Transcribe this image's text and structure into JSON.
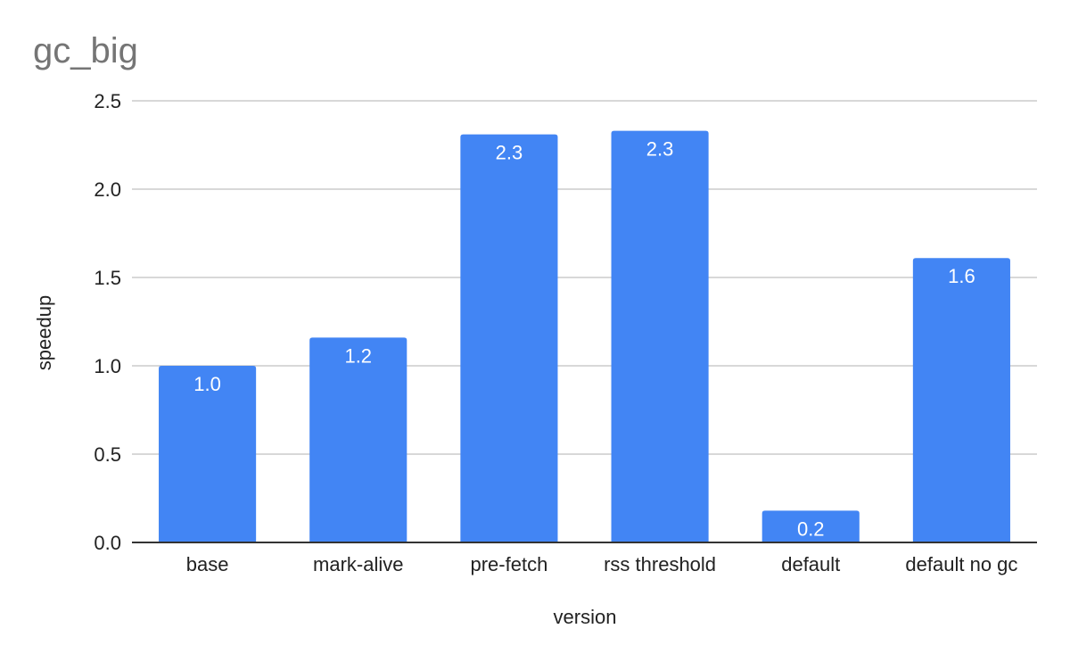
{
  "chart_data": {
    "type": "bar",
    "title": "gc_big",
    "xlabel": "version",
    "ylabel": "speedup",
    "categories": [
      "base",
      "mark-alive",
      "pre-fetch",
      "rss threshold",
      "default",
      "default no gc"
    ],
    "values": [
      1.0,
      1.16,
      2.31,
      2.33,
      0.18,
      1.61
    ],
    "data_labels": [
      "1.0",
      "1.2",
      "2.3",
      "2.3",
      "0.2",
      "1.6"
    ],
    "ylim": [
      0,
      2.5
    ],
    "yticks": [
      "0.0",
      "0.5",
      "1.0",
      "1.5",
      "2.0",
      "2.5"
    ],
    "grid": true,
    "legend": "none",
    "colors": {
      "bar": "#4285f4"
    }
  }
}
